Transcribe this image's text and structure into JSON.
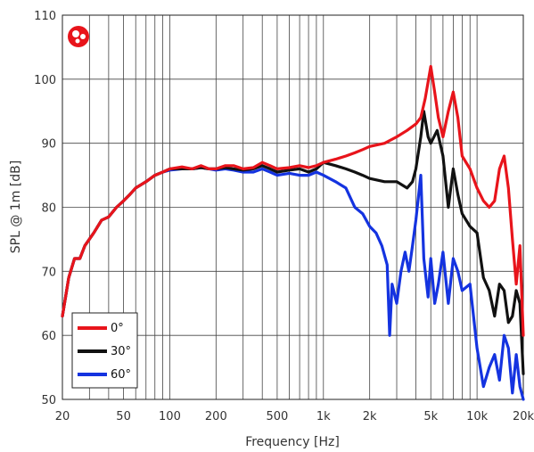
{
  "chart_data": {
    "type": "line",
    "xlabel": "Frequency [Hz]",
    "ylabel": "SPL @ 1m [dB]",
    "x_scale": "log",
    "xlim": [
      20,
      20000
    ],
    "ylim": [
      50,
      110
    ],
    "grid": true,
    "legend_position": "bottom-left",
    "x_ticks": [
      20,
      50,
      100,
      200,
      500,
      1000,
      2000,
      5000,
      10000,
      20000
    ],
    "x_tick_labels": [
      "20",
      "50",
      "100",
      "200",
      "500",
      "1k",
      "2k",
      "5k",
      "10k",
      "20k"
    ],
    "y_ticks": [
      50,
      60,
      70,
      80,
      90,
      100,
      110
    ],
    "y_tick_labels": [
      "50",
      "60",
      "70",
      "80",
      "90",
      "100",
      "110"
    ],
    "series": [
      {
        "name": "0°",
        "color": "#e8141b",
        "points": [
          [
            20,
            63
          ],
          [
            22,
            69
          ],
          [
            24,
            72
          ],
          [
            26,
            72
          ],
          [
            28,
            74
          ],
          [
            32,
            76
          ],
          [
            36,
            78
          ],
          [
            40,
            78.5
          ],
          [
            45,
            80
          ],
          [
            50,
            81
          ],
          [
            55,
            82
          ],
          [
            60,
            83
          ],
          [
            70,
            84
          ],
          [
            80,
            85
          ],
          [
            90,
            85.5
          ],
          [
            100,
            86
          ],
          [
            120,
            86.3
          ],
          [
            140,
            86
          ],
          [
            160,
            86.5
          ],
          [
            180,
            86
          ],
          [
            200,
            86
          ],
          [
            230,
            86.5
          ],
          [
            260,
            86.5
          ],
          [
            300,
            86
          ],
          [
            350,
            86.2
          ],
          [
            400,
            87
          ],
          [
            450,
            86.5
          ],
          [
            500,
            86
          ],
          [
            600,
            86.2
          ],
          [
            700,
            86.5
          ],
          [
            800,
            86.2
          ],
          [
            900,
            86.5
          ],
          [
            1000,
            87
          ],
          [
            1200,
            87.5
          ],
          [
            1400,
            88
          ],
          [
            1600,
            88.5
          ],
          [
            1800,
            89
          ],
          [
            2000,
            89.5
          ],
          [
            2500,
            90
          ],
          [
            3000,
            91
          ],
          [
            3500,
            92
          ],
          [
            4000,
            93
          ],
          [
            4300,
            94
          ],
          [
            4600,
            97
          ],
          [
            5000,
            102
          ],
          [
            5300,
            98
          ],
          [
            5600,
            94
          ],
          [
            6000,
            91
          ],
          [
            6500,
            95
          ],
          [
            7000,
            98
          ],
          [
            7500,
            94
          ],
          [
            8000,
            88
          ],
          [
            9000,
            86
          ],
          [
            10000,
            83
          ],
          [
            11000,
            81
          ],
          [
            12000,
            80
          ],
          [
            13000,
            81
          ],
          [
            14000,
            86
          ],
          [
            15000,
            88
          ],
          [
            16000,
            83
          ],
          [
            17000,
            75
          ],
          [
            18000,
            68
          ],
          [
            19000,
            74
          ],
          [
            20000,
            60
          ]
        ]
      },
      {
        "name": "30°",
        "color": "#111111",
        "points": [
          [
            20,
            63
          ],
          [
            22,
            69
          ],
          [
            24,
            72
          ],
          [
            26,
            72
          ],
          [
            28,
            74
          ],
          [
            32,
            76
          ],
          [
            36,
            78
          ],
          [
            40,
            78.5
          ],
          [
            45,
            80
          ],
          [
            50,
            81
          ],
          [
            55,
            82
          ],
          [
            60,
            83
          ],
          [
            70,
            84
          ],
          [
            80,
            85
          ],
          [
            90,
            85.5
          ],
          [
            100,
            86
          ],
          [
            120,
            86
          ],
          [
            140,
            86
          ],
          [
            160,
            86.2
          ],
          [
            180,
            86
          ],
          [
            200,
            86
          ],
          [
            230,
            86.2
          ],
          [
            260,
            86
          ],
          [
            300,
            85.8
          ],
          [
            350,
            86
          ],
          [
            400,
            86.5
          ],
          [
            450,
            86
          ],
          [
            500,
            85.5
          ],
          [
            600,
            85.8
          ],
          [
            700,
            86
          ],
          [
            800,
            85.5
          ],
          [
            900,
            86
          ],
          [
            1000,
            87
          ],
          [
            1200,
            86.5
          ],
          [
            1400,
            86
          ],
          [
            1600,
            85.5
          ],
          [
            1800,
            85
          ],
          [
            2000,
            84.5
          ],
          [
            2500,
            84
          ],
          [
            3000,
            84
          ],
          [
            3500,
            83
          ],
          [
            3800,
            84
          ],
          [
            4000,
            86
          ],
          [
            4300,
            91
          ],
          [
            4500,
            95
          ],
          [
            4800,
            91
          ],
          [
            5000,
            90
          ],
          [
            5500,
            92
          ],
          [
            6000,
            88
          ],
          [
            6500,
            80
          ],
          [
            7000,
            86
          ],
          [
            7500,
            82
          ],
          [
            8000,
            79
          ],
          [
            9000,
            77
          ],
          [
            10000,
            76
          ],
          [
            11000,
            69
          ],
          [
            12000,
            67
          ],
          [
            13000,
            63
          ],
          [
            14000,
            68
          ],
          [
            15000,
            67
          ],
          [
            16000,
            62
          ],
          [
            17000,
            63
          ],
          [
            18000,
            67
          ],
          [
            19000,
            65
          ],
          [
            20000,
            54
          ]
        ]
      },
      {
        "name": "60°",
        "color": "#1433e0",
        "points": [
          [
            20,
            63
          ],
          [
            22,
            69
          ],
          [
            24,
            72
          ],
          [
            26,
            72
          ],
          [
            28,
            74
          ],
          [
            32,
            76
          ],
          [
            36,
            78
          ],
          [
            40,
            78.5
          ],
          [
            45,
            80
          ],
          [
            50,
            81
          ],
          [
            55,
            82
          ],
          [
            60,
            83
          ],
          [
            70,
            84
          ],
          [
            80,
            85
          ],
          [
            90,
            85.5
          ],
          [
            100,
            85.8
          ],
          [
            120,
            86
          ],
          [
            140,
            86
          ],
          [
            160,
            86.2
          ],
          [
            180,
            86
          ],
          [
            200,
            85.8
          ],
          [
            230,
            86
          ],
          [
            260,
            85.8
          ],
          [
            300,
            85.5
          ],
          [
            350,
            85.5
          ],
          [
            400,
            86
          ],
          [
            450,
            85.5
          ],
          [
            500,
            85
          ],
          [
            600,
            85.3
          ],
          [
            700,
            85
          ],
          [
            800,
            85
          ],
          [
            900,
            85.5
          ],
          [
            1000,
            85
          ],
          [
            1200,
            84
          ],
          [
            1400,
            83
          ],
          [
            1600,
            80
          ],
          [
            1800,
            79
          ],
          [
            2000,
            77
          ],
          [
            2200,
            76
          ],
          [
            2400,
            74
          ],
          [
            2600,
            71
          ],
          [
            2700,
            60
          ],
          [
            2800,
            68
          ],
          [
            3000,
            65
          ],
          [
            3200,
            70
          ],
          [
            3400,
            73
          ],
          [
            3600,
            70
          ],
          [
            3800,
            74
          ],
          [
            4000,
            78
          ],
          [
            4300,
            85
          ],
          [
            4500,
            72
          ],
          [
            4800,
            66
          ],
          [
            5000,
            72
          ],
          [
            5300,
            65
          ],
          [
            5600,
            68
          ],
          [
            6000,
            73
          ],
          [
            6500,
            65
          ],
          [
            7000,
            72
          ],
          [
            7500,
            70
          ],
          [
            8000,
            67
          ],
          [
            9000,
            68
          ],
          [
            10000,
            58
          ],
          [
            11000,
            52
          ],
          [
            12000,
            55
          ],
          [
            13000,
            57
          ],
          [
            14000,
            53
          ],
          [
            15000,
            60
          ],
          [
            16000,
            58
          ],
          [
            17000,
            51
          ],
          [
            18000,
            57
          ],
          [
            19000,
            52
          ],
          [
            20000,
            50
          ]
        ]
      }
    ]
  },
  "logo_icon": "speaker-logo-icon",
  "logo_color": "#e8141b"
}
